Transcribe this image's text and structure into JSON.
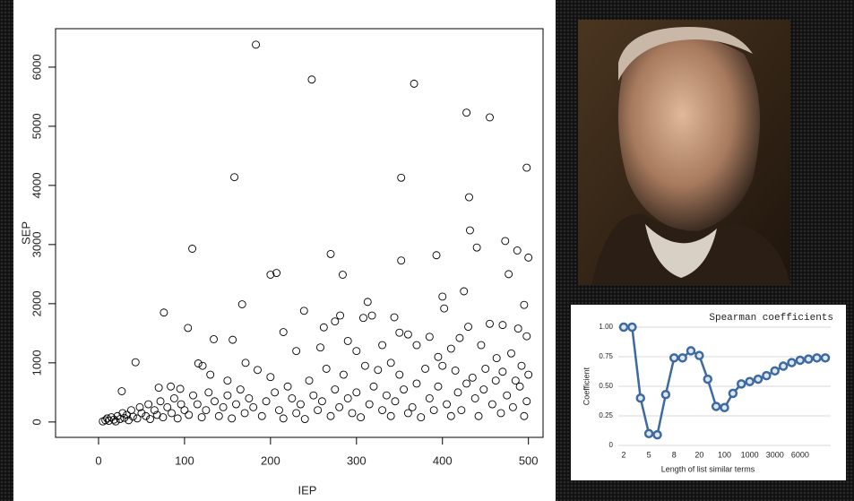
{
  "chart_data": [
    {
      "type": "scatter",
      "xlabel": "IEP",
      "ylabel": "SEP",
      "x": [
        183,
        248,
        367,
        428,
        455,
        498,
        158,
        352,
        431,
        432,
        440,
        109,
        473,
        487,
        270,
        393,
        200,
        207,
        284,
        352,
        500,
        76,
        167,
        239,
        313,
        281,
        344,
        400,
        402,
        425,
        495,
        477,
        104,
        134,
        156,
        215,
        262,
        275,
        308,
        318,
        350,
        360,
        385,
        430,
        455,
        470,
        488,
        498,
        43,
        116,
        121,
        171,
        230,
        258,
        290,
        300,
        330,
        340,
        370,
        395,
        410,
        420,
        445,
        463,
        480,
        492,
        27,
        70,
        84,
        95,
        130,
        150,
        185,
        200,
        220,
        245,
        265,
        285,
        310,
        325,
        350,
        380,
        400,
        415,
        435,
        450,
        470,
        485,
        500,
        5,
        8,
        10,
        12,
        15,
        18,
        20,
        22,
        25,
        28,
        30,
        33,
        35,
        38,
        40,
        45,
        48,
        50,
        55,
        58,
        60,
        65,
        68,
        72,
        75,
        80,
        85,
        88,
        92,
        96,
        100,
        105,
        110,
        115,
        120,
        125,
        128,
        135,
        140,
        145,
        150,
        155,
        160,
        165,
        170,
        175,
        180,
        190,
        195,
        205,
        210,
        215,
        225,
        230,
        235,
        240,
        250,
        255,
        260,
        270,
        275,
        280,
        290,
        295,
        300,
        305,
        315,
        320,
        330,
        335,
        340,
        345,
        355,
        360,
        365,
        370,
        375,
        385,
        390,
        395,
        405,
        410,
        418,
        422,
        428,
        438,
        442,
        448,
        458,
        462,
        468,
        475,
        482,
        490,
        495,
        498
      ],
      "values": [
        6380,
        5790,
        5720,
        5230,
        5150,
        4300,
        4140,
        4130,
        3800,
        3240,
        2950,
        2930,
        3060,
        2900,
        2840,
        2820,
        2490,
        2520,
        2490,
        2730,
        2780,
        1850,
        1990,
        1880,
        2030,
        1800,
        1770,
        2120,
        1920,
        2210,
        1980,
        2500,
        1590,
        1400,
        1390,
        1520,
        1600,
        1700,
        1760,
        1800,
        1510,
        1480,
        1440,
        1610,
        1660,
        1640,
        1580,
        1450,
        1010,
        990,
        950,
        1000,
        1200,
        1260,
        1370,
        1200,
        1300,
        1000,
        1300,
        1100,
        1240,
        1420,
        1300,
        1080,
        1160,
        950,
        520,
        580,
        600,
        560,
        800,
        700,
        880,
        760,
        600,
        700,
        900,
        800,
        950,
        880,
        800,
        900,
        950,
        870,
        750,
        900,
        850,
        700,
        800,
        10,
        30,
        60,
        20,
        80,
        40,
        10,
        100,
        50,
        150,
        70,
        120,
        30,
        200,
        90,
        60,
        250,
        150,
        100,
        300,
        50,
        200,
        120,
        350,
        80,
        250,
        150,
        400,
        60,
        300,
        200,
        120,
        450,
        300,
        80,
        200,
        500,
        350,
        100,
        250,
        450,
        60,
        300,
        550,
        150,
        400,
        250,
        100,
        350,
        500,
        200,
        60,
        400,
        150,
        300,
        50,
        450,
        200,
        350,
        100,
        550,
        250,
        400,
        150,
        500,
        80,
        300,
        600,
        200,
        450,
        100,
        350,
        550,
        150,
        250,
        650,
        80,
        400,
        200,
        600,
        300,
        100,
        500,
        200,
        650,
        400,
        100,
        550,
        300,
        700,
        150,
        450,
        250,
        600,
        100,
        350
      ],
      "color": "#000000",
      "xlim": [
        -50,
        517
      ],
      "ylim": [
        -260,
        6650
      ],
      "xticks": [
        0,
        100,
        200,
        300,
        400,
        500
      ],
      "yticks": [
        0,
        1000,
        2000,
        3000,
        4000,
        5000,
        6000
      ]
    },
    {
      "type": "line",
      "title": "Spearman coefficients",
      "xlabel": "Length of list similar terms",
      "ylabel": "Coefficient",
      "categories": [
        "2",
        null,
        null,
        "5",
        null,
        null,
        "8",
        null,
        null,
        "20",
        null,
        null,
        "100",
        null,
        null,
        "1000",
        null,
        null,
        "3000",
        null,
        null,
        "6000",
        null,
        null,
        null
      ],
      "series": [
        {
          "name": "Spearman coefficients",
          "color": "#3d6aa0",
          "values": [
            1.0,
            1.0,
            0.4,
            0.1,
            0.09,
            0.43,
            0.74,
            0.74,
            0.8,
            0.76,
            0.56,
            0.33,
            0.32,
            0.44,
            0.52,
            0.54,
            0.56,
            0.59,
            0.63,
            0.67,
            0.7,
            0.72,
            0.73,
            0.74,
            0.74
          ]
        }
      ],
      "ylim": [
        0,
        1
      ],
      "yticks": [
        0,
        0.25,
        {
          "value": 0.5,
          "label": "0.50"
        },
        0.75,
        {
          "value": 1,
          "label": "1.00"
        }
      ],
      "grid": true
    }
  ]
}
